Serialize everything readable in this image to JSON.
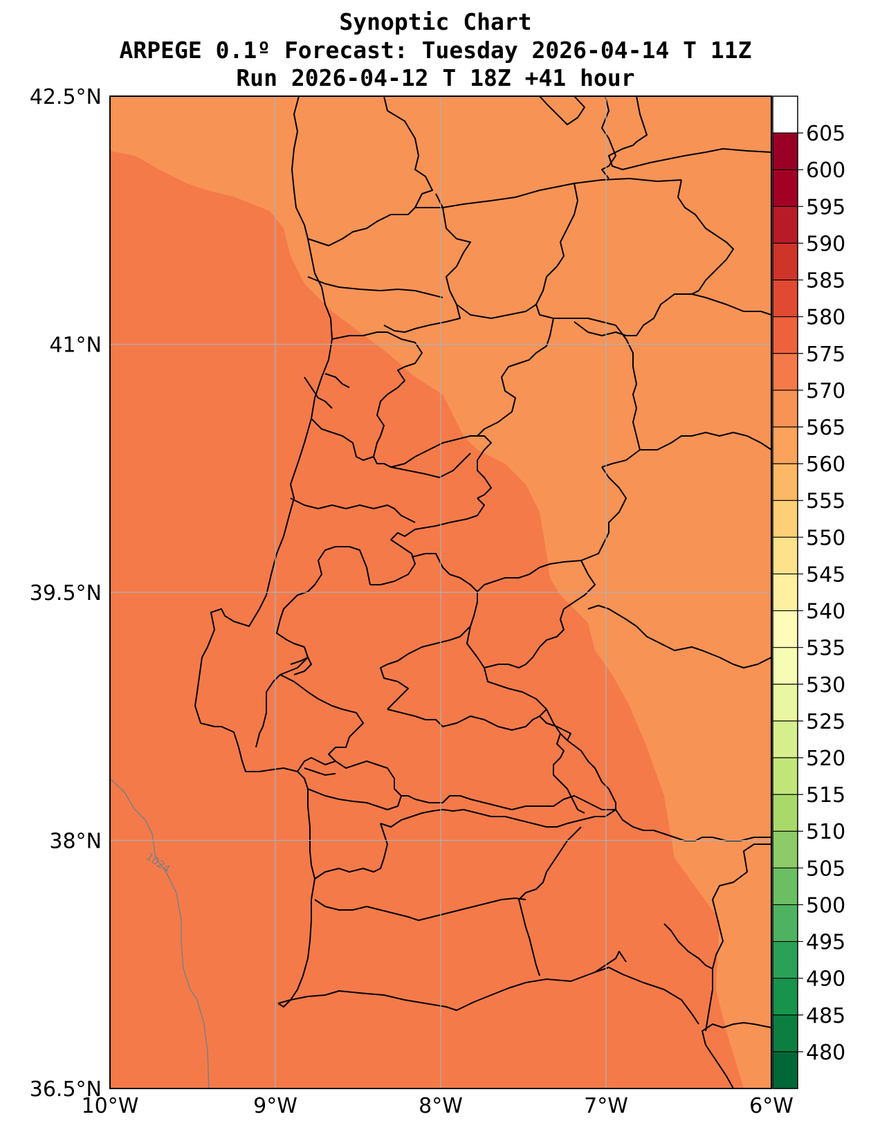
{
  "title": {
    "line1": "Synoptic Chart",
    "line2": "ARPEGE 0.1º Forecast: Tuesday 2026-04-14 T 11Z",
    "line3": "Run 2026-04-12 T 18Z +41 hour"
  },
  "map": {
    "lon_range": [
      -10,
      -6
    ],
    "lat_range": [
      36.5,
      42.5
    ],
    "gridlines": true,
    "lat_ticks": [
      {
        "value": 42.5,
        "label": "42.5°N"
      },
      {
        "value": 41,
        "label": "41°N"
      },
      {
        "value": 39.5,
        "label": "39.5°N"
      },
      {
        "value": 38,
        "label": "38°N"
      },
      {
        "value": 36.5,
        "label": "36.5°N"
      }
    ],
    "lon_ticks": [
      {
        "value": -10,
        "label": "10°W"
      },
      {
        "value": -9,
        "label": "9°W"
      },
      {
        "value": -8,
        "label": "8°W"
      },
      {
        "value": -7,
        "label": "7°W"
      },
      {
        "value": -6,
        "label": "6°W"
      }
    ],
    "field_colors": {
      "band_570_575": "#f89356",
      "band_575_580": "#f57a4a"
    },
    "isobar": {
      "label": "1024",
      "color": "#7f7f7f"
    }
  },
  "colorbar": {
    "levels": [
      475,
      480,
      485,
      490,
      495,
      500,
      505,
      510,
      515,
      520,
      525,
      530,
      535,
      540,
      545,
      550,
      555,
      560,
      565,
      570,
      575,
      580,
      585,
      590,
      595,
      600,
      605,
      610
    ],
    "labels": [
      "480",
      "485",
      "490",
      "495",
      "500",
      "505",
      "510",
      "515",
      "520",
      "525",
      "530",
      "535",
      "540",
      "545",
      "550",
      "555",
      "560",
      "565",
      "570",
      "575",
      "580",
      "585",
      "590",
      "595",
      "600",
      "605"
    ],
    "colors": [
      "#006837",
      "#0c7e40",
      "#17934b",
      "#2aa156",
      "#4db360",
      "#6bbe63",
      "#8ccb67",
      "#a9d96b",
      "#c2e57a",
      "#d7ee8e",
      "#e9f6a2",
      "#f7fcb4",
      "#fffbb8",
      "#fff0a1",
      "#fee28b",
      "#fecf76",
      "#fdb866",
      "#fba35c",
      "#f89356",
      "#f57a4a",
      "#ee613d",
      "#e04a33",
      "#cf3429",
      "#b81b27",
      "#a30026",
      "#9a0026"
    ]
  }
}
